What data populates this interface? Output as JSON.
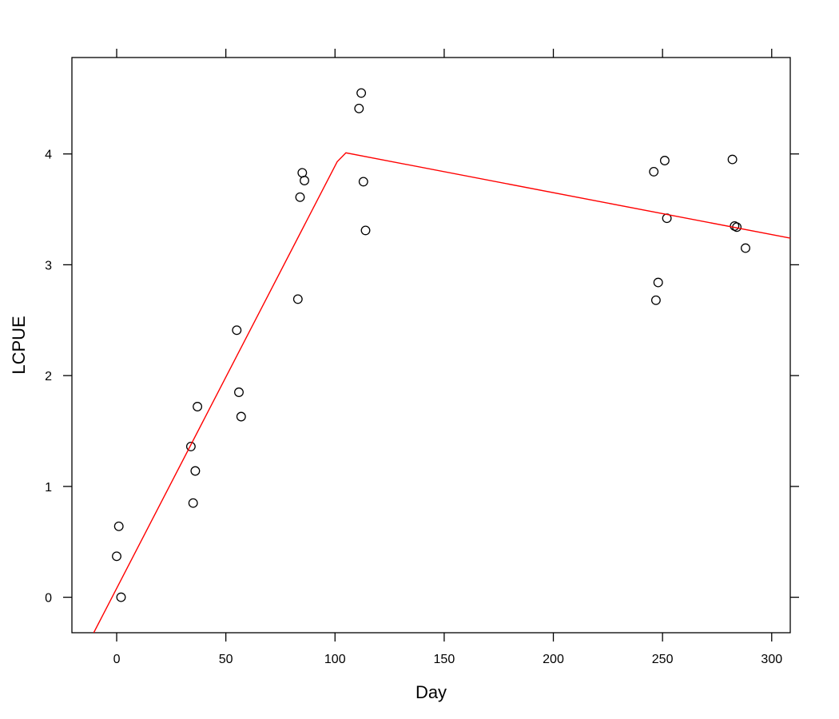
{
  "chart_data": {
    "type": "scatter",
    "title": "",
    "xlabel": "Day",
    "ylabel": "LCPUE",
    "xlim": [
      -20.5,
      308.5
    ],
    "ylim": [
      -0.32,
      4.87
    ],
    "x_ticks": [
      0,
      50,
      100,
      150,
      200,
      250,
      300
    ],
    "y_ticks": [
      0,
      1,
      2,
      3,
      4
    ],
    "x_tick_labels": [
      "0",
      "50",
      "100",
      "150",
      "200",
      "250",
      "300"
    ],
    "y_tick_labels": [
      "0",
      "1",
      "2",
      "3",
      "4"
    ],
    "grid": false,
    "series": [
      {
        "kind": "points",
        "marker": "open-circle",
        "color": "#000000",
        "points": [
          [
            0,
            0.37
          ],
          [
            1,
            0.64
          ],
          [
            2,
            0.0
          ],
          [
            34,
            1.36
          ],
          [
            35,
            0.85
          ],
          [
            36,
            1.14
          ],
          [
            37,
            1.72
          ],
          [
            55,
            2.41
          ],
          [
            56,
            1.85
          ],
          [
            57,
            1.63
          ],
          [
            83,
            2.69
          ],
          [
            84,
            3.61
          ],
          [
            85,
            3.83
          ],
          [
            86,
            3.76
          ],
          [
            111,
            4.41
          ],
          [
            112,
            4.55
          ],
          [
            113,
            3.75
          ],
          [
            114,
            3.31
          ],
          [
            246,
            3.84
          ],
          [
            247,
            2.68
          ],
          [
            248,
            2.84
          ],
          [
            251,
            3.94
          ],
          [
            252,
            3.42
          ],
          [
            282,
            3.95
          ],
          [
            283,
            3.35
          ],
          [
            284,
            3.34
          ],
          [
            288,
            3.15
          ]
        ]
      },
      {
        "kind": "line",
        "color": "#ff0000",
        "points": [
          [
            -10.5,
            -0.32
          ],
          [
            101,
            3.93
          ],
          [
            105,
            4.01
          ],
          [
            308.5,
            3.24
          ]
        ]
      }
    ]
  }
}
